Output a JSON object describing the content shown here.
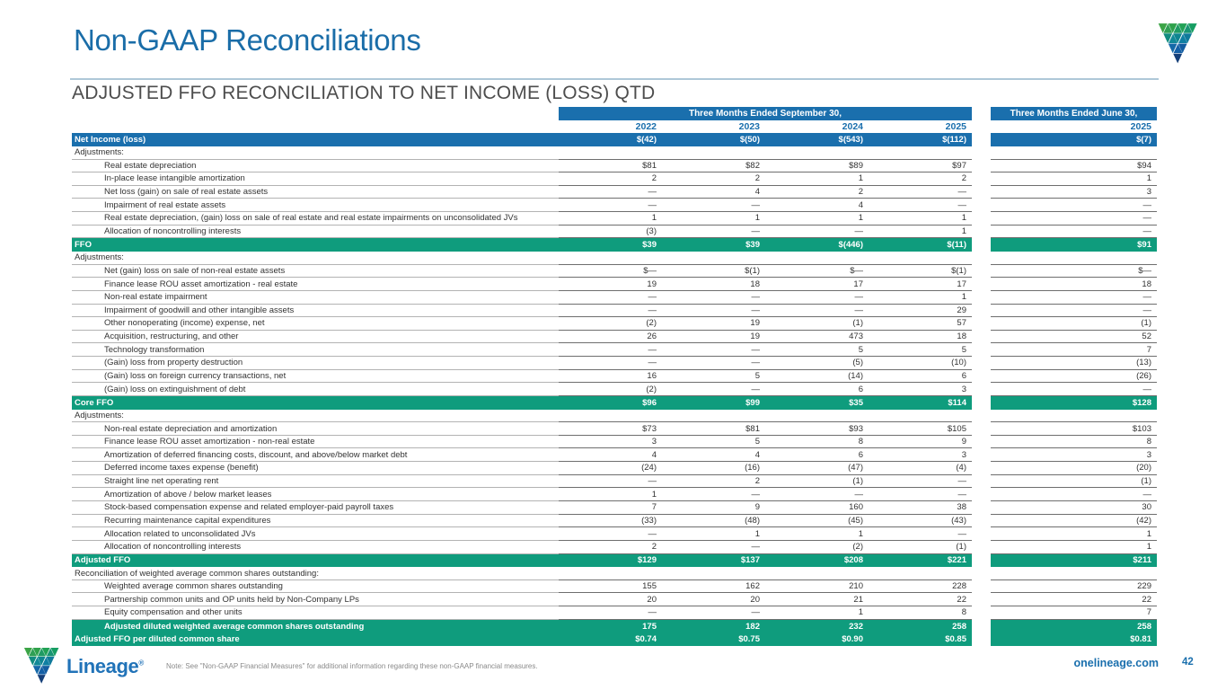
{
  "slide": {
    "title": "Non-GAAP Reconciliations",
    "subtitle": "ADJUSTED FFO RECONCILIATION TO NET INCOME (LOSS) QTD",
    "note": "Note: See \"Non-GAAP Financial Measures\" for additional information regarding these non-GAAP financial measures.",
    "website": "onelineage.com",
    "page_number": "42",
    "logo_text": "Lineage",
    "logo_reg_mark": "®"
  },
  "colors": {
    "header_blue": "#1A6FAD",
    "total_green": "#0F9C7D",
    "title_blue": "#1A6DA8",
    "brand_green": "#3BA446",
    "brand_teal": "#128C7F",
    "brand_navy": "#153F79"
  },
  "table": {
    "sept_header": "Three Months Ended September 30,",
    "june_header": "Three Months Ended June 30,",
    "years": [
      "2022",
      "2023",
      "2024",
      "2025"
    ],
    "june_year": "2025",
    "rows": [
      {
        "label": "Net Income (loss)",
        "style": "blue",
        "indent": 0,
        "values": [
          "$(42)",
          "$(50)",
          "$(543)",
          "$(112)"
        ],
        "june": "$(7)"
      },
      {
        "label": "Adjustments:",
        "style": "section",
        "indent": 0,
        "values": [
          "",
          "",
          "",
          ""
        ],
        "june": ""
      },
      {
        "label": "Real estate depreciation",
        "style": "data",
        "indent": 1,
        "values": [
          "$81",
          "$82",
          "$89",
          "$97"
        ],
        "june": "$94"
      },
      {
        "label": "In-place lease intangible amortization",
        "style": "data",
        "indent": 1,
        "values": [
          "2",
          "2",
          "1",
          "2"
        ],
        "june": "1"
      },
      {
        "label": "Net loss (gain) on sale of real estate assets",
        "style": "data",
        "indent": 1,
        "values": [
          "—",
          "4",
          "2",
          "—"
        ],
        "june": "3"
      },
      {
        "label": "Impairment of real estate assets",
        "style": "data",
        "indent": 1,
        "values": [
          "—",
          "—",
          "4",
          "—"
        ],
        "june": "—"
      },
      {
        "label": "Real estate depreciation, (gain) loss on sale of real estate and real estate impairments on unconsolidated JVs",
        "style": "data",
        "indent": 1,
        "values": [
          "1",
          "1",
          "1",
          "1"
        ],
        "june": "—"
      },
      {
        "label": "Allocation of noncontrolling interests",
        "style": "data",
        "indent": 1,
        "values": [
          "(3)",
          "—",
          "—",
          "1"
        ],
        "june": "—"
      },
      {
        "label": "FFO",
        "style": "green",
        "indent": 0,
        "values": [
          "$39",
          "$39",
          "$(446)",
          "$(11)"
        ],
        "june": "$91"
      },
      {
        "label": "Adjustments:",
        "style": "section",
        "indent": 0,
        "values": [
          "",
          "",
          "",
          ""
        ],
        "june": ""
      },
      {
        "label": "Net (gain) loss on sale of non-real estate assets",
        "style": "data",
        "indent": 1,
        "values": [
          "$—",
          "$(1)",
          "$—",
          "$(1)"
        ],
        "june": "$—"
      },
      {
        "label": "Finance lease ROU asset amortization - real estate",
        "style": "data",
        "indent": 1,
        "values": [
          "19",
          "18",
          "17",
          "17"
        ],
        "june": "18"
      },
      {
        "label": "Non-real estate  impairment",
        "style": "data",
        "indent": 1,
        "values": [
          "—",
          "—",
          "—",
          "1"
        ],
        "june": "—"
      },
      {
        "label": "Impairment of goodwill and other intangible assets",
        "style": "data",
        "indent": 1,
        "values": [
          "—",
          "—",
          "—",
          "29"
        ],
        "june": "—"
      },
      {
        "label": "Other nonoperating (income) expense, net",
        "style": "data",
        "indent": 1,
        "values": [
          "(2)",
          "19",
          "(1)",
          "57"
        ],
        "june": "(1)"
      },
      {
        "label": "Acquisition, restructuring, and other",
        "style": "data",
        "indent": 1,
        "values": [
          "26",
          "19",
          "473",
          "18"
        ],
        "june": "52"
      },
      {
        "label": "Technology transformation",
        "style": "data",
        "indent": 1,
        "values": [
          "—",
          "—",
          "5",
          "5"
        ],
        "june": "7"
      },
      {
        "label": "(Gain) loss from property destruction",
        "style": "data",
        "indent": 1,
        "values": [
          "—",
          "—",
          "(5)",
          "(10)"
        ],
        "june": "(13)"
      },
      {
        "label": "(Gain) loss on foreign currency transactions, net",
        "style": "data",
        "indent": 1,
        "values": [
          "16",
          "5",
          "(14)",
          "6"
        ],
        "june": "(26)"
      },
      {
        "label": "(Gain) loss on extinguishment of debt",
        "style": "data",
        "indent": 1,
        "values": [
          "(2)",
          "—",
          "6",
          "3"
        ],
        "june": "—"
      },
      {
        "label": "Core FFO",
        "style": "green",
        "indent": 0,
        "values": [
          "$96",
          "$99",
          "$35",
          "$114"
        ],
        "june": "$128"
      },
      {
        "label": "Adjustments:",
        "style": "section",
        "indent": 0,
        "values": [
          "",
          "",
          "",
          ""
        ],
        "june": ""
      },
      {
        "label": "Non-real estate depreciation and amortization",
        "style": "data",
        "indent": 1,
        "values": [
          "$73",
          "$81",
          "$93",
          "$105"
        ],
        "june": "$103"
      },
      {
        "label": "Finance lease ROU asset amortization - non-real estate",
        "style": "data",
        "indent": 1,
        "values": [
          "3",
          "5",
          "8",
          "9"
        ],
        "june": "8"
      },
      {
        "label": "Amortization of deferred financing costs, discount, and above/below market debt",
        "style": "data",
        "indent": 1,
        "values": [
          "4",
          "4",
          "6",
          "3"
        ],
        "june": "3"
      },
      {
        "label": "Deferred income taxes expense (benefit)",
        "style": "data",
        "indent": 1,
        "values": [
          "(24)",
          "(16)",
          "(47)",
          "(4)"
        ],
        "june": "(20)"
      },
      {
        "label": "Straight line net operating rent",
        "style": "data",
        "indent": 1,
        "values": [
          "—",
          "2",
          "(1)",
          "—"
        ],
        "june": "(1)"
      },
      {
        "label": "Amortization of above / below market leases",
        "style": "data",
        "indent": 1,
        "values": [
          "1",
          "—",
          "—",
          "—"
        ],
        "june": "—"
      },
      {
        "label": "Stock-based compensation expense and related employer-paid payroll taxes",
        "style": "data",
        "indent": 1,
        "values": [
          "7",
          "9",
          "160",
          "38"
        ],
        "june": "30"
      },
      {
        "label": "Recurring maintenance capital expenditures",
        "style": "data",
        "indent": 1,
        "values": [
          "(33)",
          "(48)",
          "(45)",
          "(43)"
        ],
        "june": "(42)"
      },
      {
        "label": "Allocation related to unconsolidated JVs",
        "style": "data",
        "indent": 1,
        "values": [
          "—",
          "1",
          "1",
          "—"
        ],
        "june": "1"
      },
      {
        "label": "Allocation of noncontrolling interests",
        "style": "data",
        "indent": 1,
        "values": [
          "2",
          "—",
          "(2)",
          "(1)"
        ],
        "june": "1"
      },
      {
        "label": "Adjusted FFO",
        "style": "green",
        "indent": 0,
        "values": [
          "$129",
          "$137",
          "$208",
          "$221"
        ],
        "june": "$211"
      },
      {
        "label": "Reconciliation of weighted average common shares outstanding:",
        "style": "section",
        "indent": 0,
        "values": [
          "",
          "",
          "",
          ""
        ],
        "june": ""
      },
      {
        "label": "Weighted average common shares outstanding",
        "style": "data",
        "indent": 1,
        "values": [
          "155",
          "162",
          "210",
          "228"
        ],
        "june": "229"
      },
      {
        "label": "Partnership common units and OP units held by Non-Company LPs",
        "style": "data",
        "indent": 1,
        "values": [
          "20",
          "20",
          "21",
          "22"
        ],
        "june": "22"
      },
      {
        "label": "Equity compensation and other units",
        "style": "data",
        "indent": 1,
        "values": [
          "—",
          "—",
          "1",
          "8"
        ],
        "june": "7"
      },
      {
        "label": "Adjusted diluted weighted average common shares outstanding",
        "style": "green",
        "indent": 1,
        "values": [
          "175",
          "182",
          "232",
          "258"
        ],
        "june": "258"
      },
      {
        "label": "Adjusted FFO per diluted common share",
        "style": "green",
        "indent": 0,
        "values": [
          "$0.74",
          "$0.75",
          "$0.90",
          "$0.85"
        ],
        "june": "$0.81"
      }
    ]
  }
}
